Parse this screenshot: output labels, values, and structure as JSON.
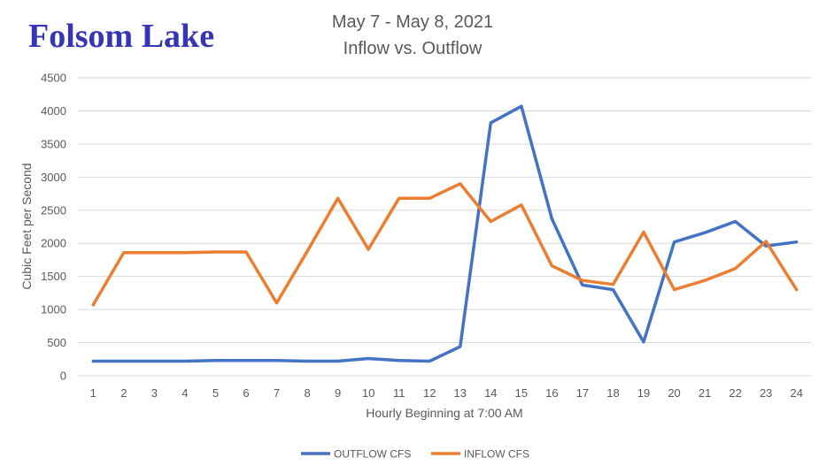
{
  "brand": {
    "text": "Folsom Lake",
    "color": "#3535b5"
  },
  "colors": {
    "grid": "#d9d9d9",
    "text": "#595959"
  },
  "chart_data": {
    "type": "line",
    "title": "May 7 - May 8, 2021",
    "subtitle": "Inflow vs. Outflow",
    "xlabel": "Hourly Beginning at 7:00 AM",
    "ylabel": "Cubic Feet per Second",
    "x": [
      1,
      2,
      3,
      4,
      5,
      6,
      7,
      8,
      9,
      10,
      11,
      12,
      13,
      14,
      15,
      16,
      17,
      18,
      19,
      20,
      21,
      22,
      23,
      24
    ],
    "ylim": [
      0,
      4500
    ],
    "yticks": [
      0,
      500,
      1000,
      1500,
      2000,
      2500,
      3000,
      3500,
      4000,
      4500
    ],
    "grid": true,
    "legend_position": "bottom",
    "series": [
      {
        "name": "OUTFLOW CFS",
        "color": "#4472c4",
        "values": [
          220,
          220,
          220,
          220,
          230,
          230,
          230,
          220,
          220,
          260,
          230,
          220,
          440,
          3820,
          4070,
          2370,
          1370,
          1300,
          510,
          2020,
          2160,
          2330,
          1960,
          2020
        ]
      },
      {
        "name": "INFLOW CFS",
        "color": "#ed7d31",
        "values": [
          1070,
          1860,
          1860,
          1860,
          1870,
          1870,
          1100,
          1880,
          2680,
          1910,
          2680,
          2680,
          2900,
          2330,
          2580,
          1660,
          1440,
          1380,
          2170,
          1300,
          1440,
          1620,
          2030,
          1300
        ]
      }
    ]
  }
}
